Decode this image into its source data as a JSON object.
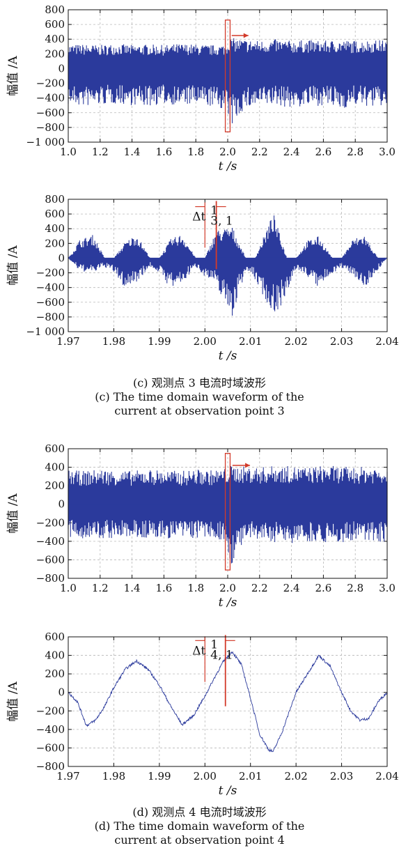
{
  "charts": [
    {
      "id": "c1",
      "type": "line",
      "ylabel": "幅值 /A",
      "xlabel": "t /s",
      "xlim": [
        1.0,
        3.0
      ],
      "ylim": [
        -1000,
        800
      ],
      "xticks": [
        "1.0",
        "1.2",
        "1.4",
        "1.6",
        "1.8",
        "2.0",
        "2.2",
        "2.4",
        "2.6",
        "2.8",
        "3.0"
      ],
      "yticks": [
        "800",
        "600",
        "400",
        "200",
        "0",
        "−200",
        "−400",
        "−600",
        "−800",
        "−1 000"
      ],
      "series": [
        {
          "x": [
            1.0,
            1.1,
            1.2,
            1.3,
            1.4,
            1.5,
            1.6,
            1.7,
            1.8,
            1.9,
            1.99,
            2.01,
            2.1,
            2.2,
            2.3,
            2.4,
            2.5,
            2.6,
            2.7,
            2.8,
            2.9,
            3.0
          ],
          "max": [
            330,
            330,
            320,
            340,
            320,
            330,
            320,
            340,
            330,
            320,
            330,
            420,
            400,
            380,
            400,
            380,
            390,
            380,
            390,
            380,
            390,
            390
          ],
          "min": [
            -500,
            -520,
            -500,
            -480,
            -500,
            -520,
            -480,
            -500,
            -500,
            -520,
            -560,
            -840,
            -560,
            -520,
            -500,
            -540,
            -520,
            -500,
            -560,
            -500,
            -520,
            -520
          ]
        }
      ],
      "highlight_box": {
        "x0": 1.985,
        "x1": 2.015,
        "y0": -860,
        "y1": 660
      },
      "arrow": {
        "x0": 2.025,
        "x1": 2.13,
        "y": 450
      }
    },
    {
      "id": "c2",
      "type": "line",
      "ylabel": "幅值 /A",
      "xlabel": "t /s",
      "xlim": [
        1.97,
        2.04
      ],
      "ylim": [
        -1000,
        800
      ],
      "xticks": [
        "1.97",
        "1.98",
        "1.99",
        "2.00",
        "2.01",
        "2.02",
        "2.03",
        "2.04"
      ],
      "yticks": [
        "800",
        "600",
        "400",
        "200",
        "0",
        "−200",
        "−400",
        "−600",
        "−800",
        "−1 000"
      ],
      "annotation": {
        "label": "Δt",
        "sup": "1",
        "sub": "3, 1",
        "x0": 2.0,
        "x1": 2.0025,
        "y": 700
      },
      "series": [
        {
          "x": [
            1.97,
            1.9725,
            1.9755,
            1.978,
            1.98,
            1.9825,
            1.985,
            1.988,
            1.99,
            1.9925,
            1.995,
            1.998,
            2.0,
            2.0025,
            2.006,
            2.009,
            2.011,
            2.015,
            2.018,
            2.02,
            2.0225,
            2.025,
            2.028,
            2.03,
            2.0325,
            2.035,
            2.038,
            2.04
          ],
          "max": [
            0,
            250,
            320,
            0,
            0,
            220,
            330,
            0,
            0,
            260,
            330,
            0,
            0,
            380,
            430,
            0,
            0,
            620,
            0,
            0,
            240,
            300,
            0,
            0,
            260,
            320,
            0,
            0
          ],
          "min": [
            0,
            -180,
            -200,
            -120,
            -200,
            -420,
            -320,
            -120,
            -200,
            -420,
            -350,
            -120,
            -250,
            -380,
            -800,
            -160,
            -300,
            -780,
            -550,
            -150,
            -250,
            -420,
            -200,
            -140,
            -220,
            -420,
            -160,
            0
          ]
        }
      ]
    },
    {
      "id": "c3",
      "type": "line",
      "ylabel": "幅值 /A",
      "xlabel": "t /s",
      "xlim": [
        1.0,
        3.0
      ],
      "ylim": [
        -800,
        600
      ],
      "xticks": [
        "1.0",
        "1.2",
        "1.4",
        "1.6",
        "1.8",
        "2.0",
        "2.2",
        "2.4",
        "2.6",
        "2.8",
        "3.0"
      ],
      "yticks": [
        "600",
        "400",
        "200",
        "0",
        "−200",
        "−400",
        "−600",
        "−800"
      ],
      "series": [
        {
          "x": [
            1.0,
            1.1,
            1.2,
            1.3,
            1.4,
            1.5,
            1.6,
            1.7,
            1.8,
            1.9,
            1.99,
            2.01,
            2.1,
            2.2,
            2.3,
            2.4,
            2.5,
            2.6,
            2.7,
            2.8,
            2.9,
            3.0
          ],
          "max": [
            370,
            360,
            380,
            370,
            360,
            380,
            370,
            360,
            380,
            370,
            390,
            420,
            410,
            400,
            420,
            410,
            400,
            420,
            410,
            400,
            410,
            400
          ],
          "min": [
            -380,
            -370,
            -380,
            -370,
            -360,
            -380,
            -370,
            -380,
            -370,
            -380,
            -400,
            -690,
            -420,
            -400,
            -410,
            -420,
            -400,
            -410,
            -420,
            -410,
            -400,
            -410
          ]
        }
      ],
      "highlight_box": {
        "x0": 1.985,
        "x1": 2.015,
        "y0": -710,
        "y1": 550
      },
      "arrow": {
        "x0": 2.03,
        "x1": 2.14,
        "y": 420
      }
    },
    {
      "id": "c4",
      "type": "line",
      "ylabel": "幅值 /A",
      "xlabel": "t /s",
      "xlim": [
        1.97,
        2.04
      ],
      "ylim": [
        -800,
        600
      ],
      "xticks": [
        "1.97",
        "1.98",
        "1.99",
        "2.00",
        "2.01",
        "2.02",
        "2.03",
        "2.04"
      ],
      "yticks": [
        "600",
        "400",
        "200",
        "0",
        "−200",
        "−400",
        "−600",
        "−800"
      ],
      "annotation": {
        "label": "Δt",
        "sup": "1",
        "sub": "4, 1",
        "x0": 2.0,
        "x1": 2.0045,
        "y": 560
      },
      "series": [
        {
          "x": [
            1.97,
            1.972,
            1.974,
            1.976,
            1.978,
            1.98,
            1.9825,
            1.985,
            1.9875,
            1.99,
            1.9925,
            1.995,
            1.9975,
            2.0,
            2.002,
            2.004,
            2.006,
            2.008,
            2.01,
            2.012,
            2.014,
            2.015,
            2.017,
            2.02,
            2.0225,
            2.025,
            2.0275,
            2.03,
            2.032,
            2.034,
            2.036,
            2.038,
            2.04
          ],
          "y": [
            0,
            -100,
            -360,
            -300,
            -150,
            50,
            250,
            340,
            250,
            80,
            -150,
            -350,
            -250,
            -40,
            150,
            330,
            440,
            300,
            -60,
            -450,
            -620,
            -640,
            -420,
            0,
            200,
            400,
            280,
            0,
            -200,
            -300,
            -280,
            -100,
            0
          ]
        }
      ]
    }
  ],
  "captions": {
    "c": {
      "cn": "(c) 观测点 3 电流时域波形",
      "en1": "(c) The time domain waveform of the",
      "en2": "current at observation point 3"
    },
    "d": {
      "cn": "(d) 观测点 4 电流时域波形",
      "en1": "(d) The time domain waveform of the",
      "en2": "current at observation point 4"
    }
  },
  "colors": {
    "wave": "#2b3a9c",
    "highlight": "#d23a2a",
    "grid": "#b8b8b8"
  }
}
